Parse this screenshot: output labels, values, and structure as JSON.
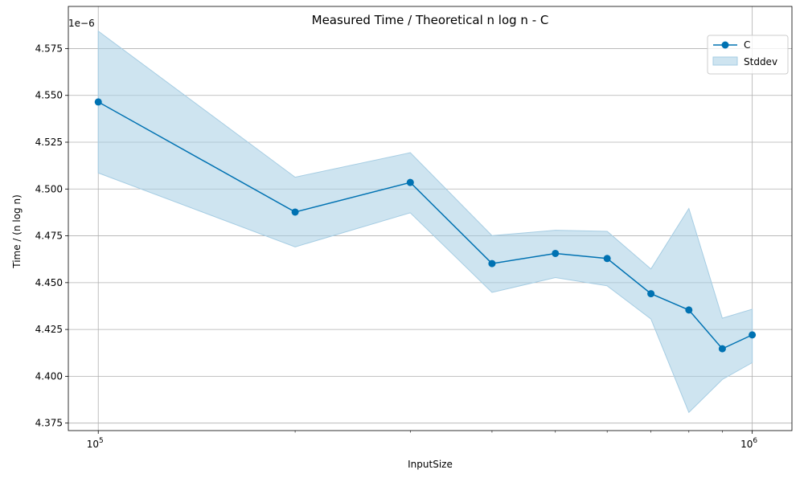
{
  "chart_data": {
    "type": "line",
    "title": "Measured Time / Theoretical n log n - C",
    "xlabel": "InputSize",
    "ylabel": "Time / (n log n)",
    "x_scale": "log",
    "xlim": [
      90000,
      1150000
    ],
    "ylim": [
      4.371,
      4.5975
    ],
    "y_multiplier_label": "1e−6",
    "grid": true,
    "legend_position": "top-right",
    "x_major_ticks": [
      {
        "value": 100000,
        "base": "10",
        "exp": "5"
      },
      {
        "value": 1000000,
        "base": "10",
        "exp": "6"
      }
    ],
    "x_minor_ticks": [
      200000,
      300000,
      400000,
      500000,
      600000,
      700000,
      800000,
      900000
    ],
    "y_ticks": [
      4.375,
      4.4,
      4.425,
      4.45,
      4.475,
      4.5,
      4.525,
      4.55,
      4.575
    ],
    "y_tick_labels": [
      "4.375",
      "4.400",
      "4.425",
      "4.450",
      "4.475",
      "4.500",
      "4.525",
      "4.550",
      "4.575"
    ],
    "x": [
      100000,
      200000,
      300000,
      400000,
      500000,
      600000,
      700000,
      800000,
      900000,
      1000000
    ],
    "series": [
      {
        "name": "C",
        "color": "#0072b2",
        "marker": "circle",
        "values": [
          4.5465,
          4.4877,
          4.5035,
          4.4602,
          4.4656,
          4.4629,
          4.4441,
          4.4354,
          4.4147,
          4.4221
        ]
      }
    ],
    "band": {
      "name": "Stddev",
      "color": "#a6cde3",
      "upper": [
        4.5843,
        4.5063,
        4.5194,
        4.4751,
        4.478,
        4.4774,
        4.4573,
        4.4896,
        4.431,
        4.4358
      ],
      "lower": [
        4.5086,
        4.4691,
        4.4873,
        4.4448,
        4.4527,
        4.4483,
        4.4306,
        4.3807,
        4.3983,
        4.4073
      ]
    }
  }
}
